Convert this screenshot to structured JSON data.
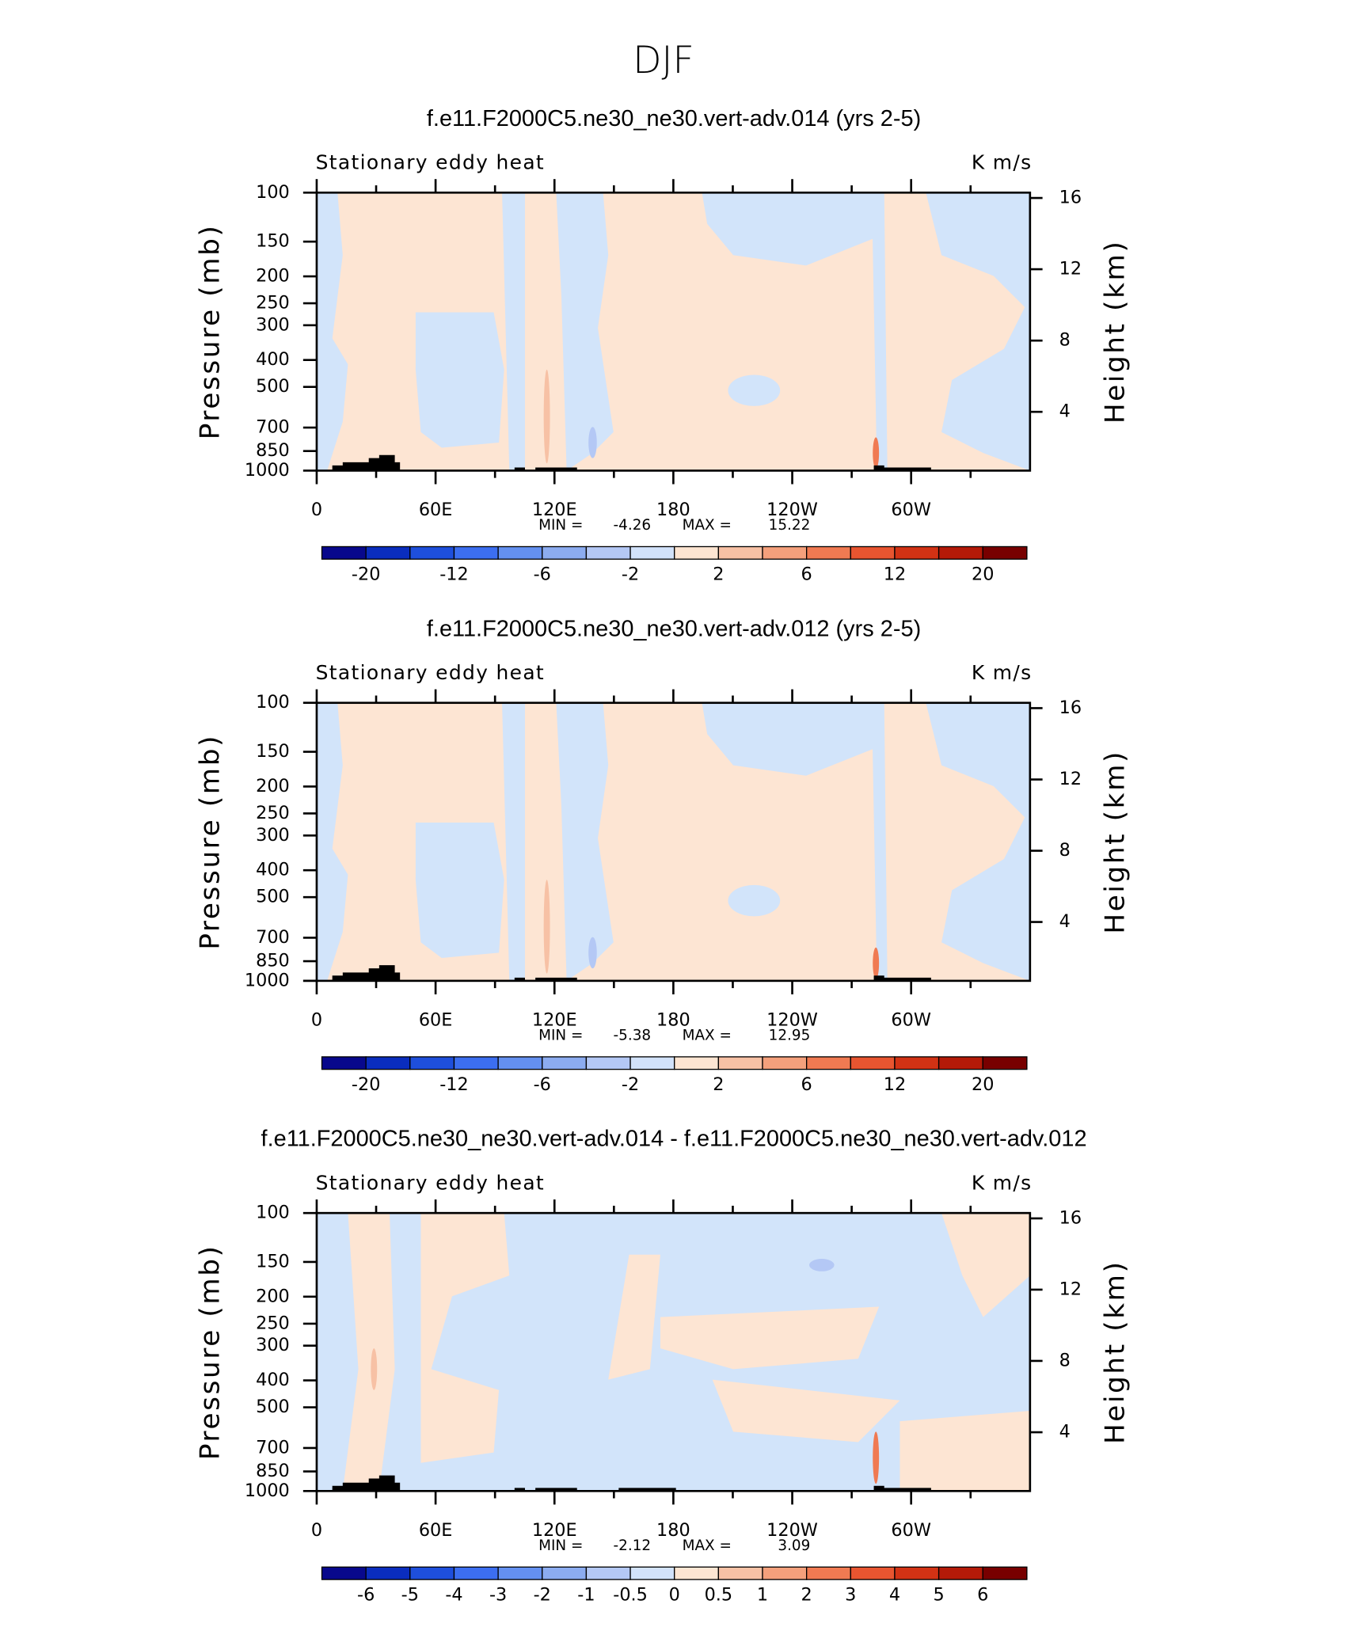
{
  "title": "DJF",
  "chart_data": [
    {
      "type": "contour",
      "title": "f.e11.F2000C5.ne30_ne30.vert-adv.014 (yrs 2-5)",
      "left_label": "Stationary eddy heat",
      "right_label": "K m/s",
      "ylabel": "Pressure (mb)",
      "y2label": "Height (km)",
      "xlim": [
        0,
        360
      ],
      "xticks": [
        0,
        {
          "value": 60,
          "label": "60E"
        },
        {
          "value": 120,
          "label": "120E"
        },
        180,
        {
          "value": 240,
          "label": "120W"
        },
        {
          "value": 300,
          "label": "60W"
        }
      ],
      "ylim": [
        1000,
        100
      ],
      "log_y": true,
      "yticks": [
        100,
        150,
        200,
        250,
        300,
        400,
        500,
        700,
        850,
        1000
      ],
      "y2lim": [
        0.7,
        16.3
      ],
      "y2ticks": [
        4,
        8,
        12,
        16
      ],
      "min_label": "MIN =",
      "min": -4.26,
      "max_label": "MAX =",
      "max": 15.22,
      "colorbar": {
        "colors": [
          "#08088c",
          "#0a2dbe",
          "#1e4fdc",
          "#3c6ef0",
          "#6490f0",
          "#8cacf0",
          "#b4c8f5",
          "#d2e2fa",
          "#fde5d2",
          "#f7c1a5",
          "#f4a07c",
          "#f07a52",
          "#e85530",
          "#d23214",
          "#b41a08",
          "#780000"
        ],
        "ticks": [
          -20,
          -12,
          -6,
          -2,
          2,
          6,
          12,
          20
        ]
      }
    },
    {
      "type": "contour",
      "title": "f.e11.F2000C5.ne30_ne30.vert-adv.012 (yrs 2-5)",
      "left_label": "Stationary eddy heat",
      "right_label": "K m/s",
      "ylabel": "Pressure (mb)",
      "y2label": "Height (km)",
      "xlim": [
        0,
        360
      ],
      "xticks": [
        0,
        {
          "value": 60,
          "label": "60E"
        },
        {
          "value": 120,
          "label": "120E"
        },
        180,
        {
          "value": 240,
          "label": "120W"
        },
        {
          "value": 300,
          "label": "60W"
        }
      ],
      "ylim": [
        1000,
        100
      ],
      "log_y": true,
      "yticks": [
        100,
        150,
        200,
        250,
        300,
        400,
        500,
        700,
        850,
        1000
      ],
      "y2lim": [
        0.7,
        16.3
      ],
      "y2ticks": [
        4,
        8,
        12,
        16
      ],
      "min_label": "MIN =",
      "min": -5.38,
      "max_label": "MAX =",
      "max": 12.95,
      "colorbar": {
        "colors": [
          "#08088c",
          "#0a2dbe",
          "#1e4fdc",
          "#3c6ef0",
          "#6490f0",
          "#8cacf0",
          "#b4c8f5",
          "#d2e2fa",
          "#fde5d2",
          "#f7c1a5",
          "#f4a07c",
          "#f07a52",
          "#e85530",
          "#d23214",
          "#b41a08",
          "#780000"
        ],
        "ticks": [
          -20,
          -12,
          -6,
          -2,
          2,
          6,
          12,
          20
        ]
      }
    },
    {
      "type": "contour",
      "title": "f.e11.F2000C5.ne30_ne30.vert-adv.014 - f.e11.F2000C5.ne30_ne30.vert-adv.012",
      "left_label": "Stationary eddy heat",
      "right_label": "K m/s",
      "ylabel": "Pressure (mb)",
      "y2label": "Height (km)",
      "xlim": [
        0,
        360
      ],
      "xticks": [
        0,
        {
          "value": 60,
          "label": "60E"
        },
        {
          "value": 120,
          "label": "120E"
        },
        180,
        {
          "value": 240,
          "label": "120W"
        },
        {
          "value": 300,
          "label": "60W"
        }
      ],
      "ylim": [
        1000,
        100
      ],
      "log_y": true,
      "yticks": [
        100,
        150,
        200,
        250,
        300,
        400,
        500,
        700,
        850,
        1000
      ],
      "y2lim": [
        0.7,
        16.3
      ],
      "y2ticks": [
        4,
        8,
        12,
        16
      ],
      "min_label": "MIN =",
      "min": -2.12,
      "max_label": "MAX =",
      "max": 3.09,
      "colorbar": {
        "colors": [
          "#08088c",
          "#0a2dbe",
          "#1e4fdc",
          "#3c6ef0",
          "#6490f0",
          "#8cacf0",
          "#b4c8f5",
          "#d2e2fa",
          "#fde5d2",
          "#f7c1a5",
          "#f4a07c",
          "#f07a52",
          "#e85530",
          "#d23214",
          "#b41a08",
          "#780000"
        ],
        "ticks": [
          -6,
          -5,
          -4,
          -3,
          -2,
          -1,
          -0.5,
          0,
          0.5,
          1,
          2,
          3,
          4,
          5,
          6
        ]
      }
    }
  ]
}
